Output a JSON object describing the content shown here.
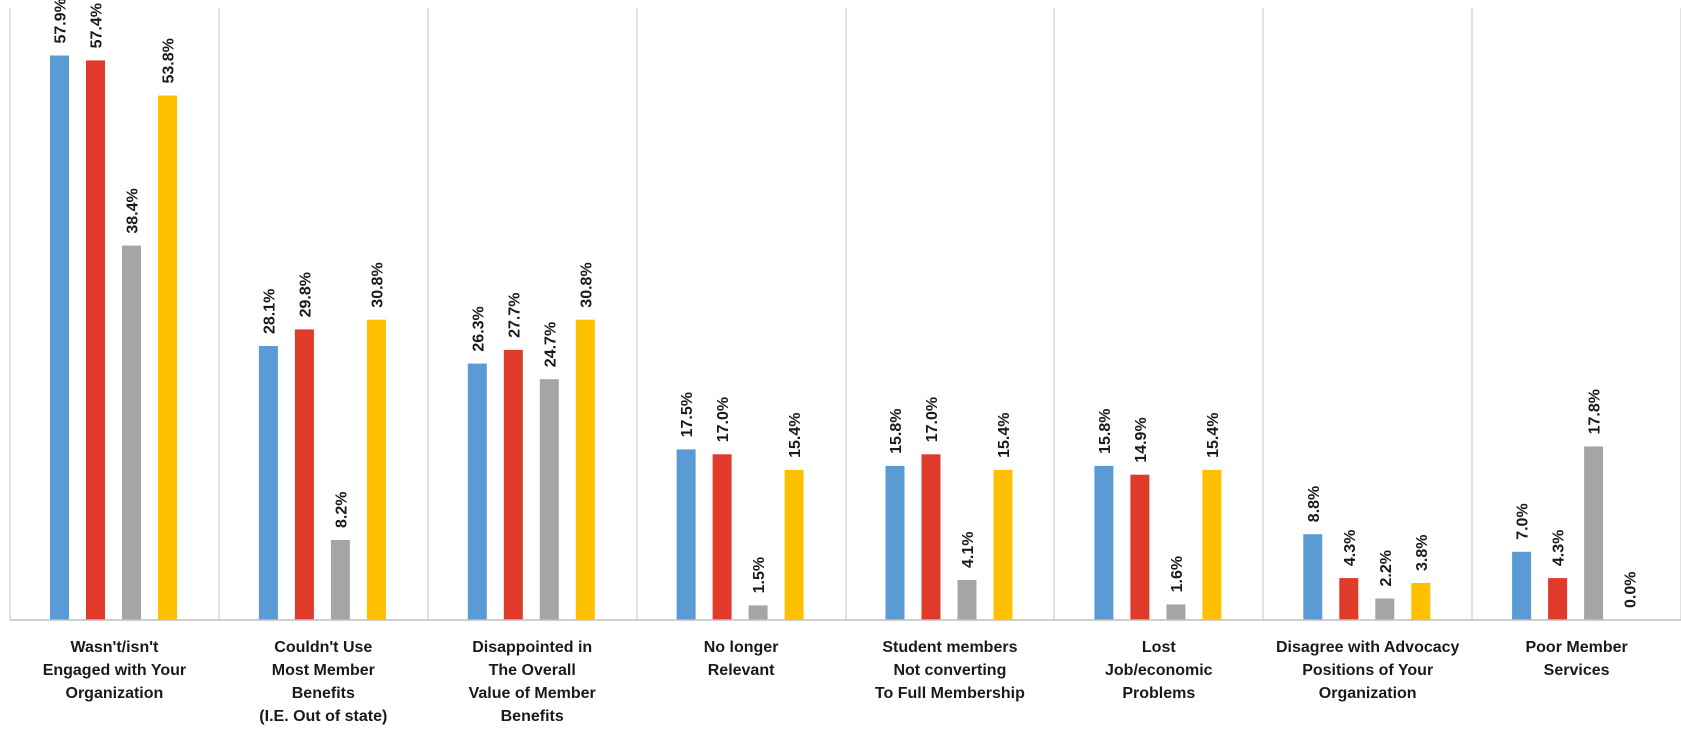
{
  "chart_data": {
    "type": "bar",
    "title": "",
    "xlabel": "",
    "ylabel": "",
    "ylim": [
      0,
      62
    ],
    "grid": false,
    "legend": "none",
    "value_suffix": "%",
    "categories": [
      [
        "Wasn't/isn't",
        "Engaged with Your",
        "Organization"
      ],
      [
        "Couldn't  Use",
        "Most Member",
        "Benefits",
        "(I.E. Out of state)"
      ],
      [
        "Disappointed in",
        "The Overall",
        "Value of Member",
        "Benefits"
      ],
      [
        "No longer",
        "Relevant"
      ],
      [
        "Student members",
        "Not converting",
        "To Full Membership"
      ],
      [
        "Lost",
        "Job/economic",
        "Problems"
      ],
      [
        "Disagree with Advocacy",
        "Positions of Your",
        "Organization"
      ],
      [
        "Poor Member",
        "Services"
      ]
    ],
    "series": [
      {
        "color": "#5b9bd5",
        "values": [
          57.9,
          28.1,
          26.3,
          17.5,
          15.8,
          15.8,
          8.8,
          7.0
        ]
      },
      {
        "color": "#e03a2b",
        "values": [
          57.4,
          29.8,
          27.7,
          17.0,
          17.0,
          14.9,
          4.3,
          4.3
        ]
      },
      {
        "color": "#a5a5a8",
        "values": [
          38.4,
          8.2,
          24.7,
          1.5,
          4.1,
          1.6,
          2.2,
          17.8
        ]
      },
      {
        "color": "#ffc000",
        "values": [
          53.8,
          30.8,
          30.8,
          15.4,
          15.4,
          15.4,
          3.8,
          0.0
        ]
      }
    ],
    "separator_color": "#d9d9d9",
    "axis_color": "#bfbfbf"
  }
}
